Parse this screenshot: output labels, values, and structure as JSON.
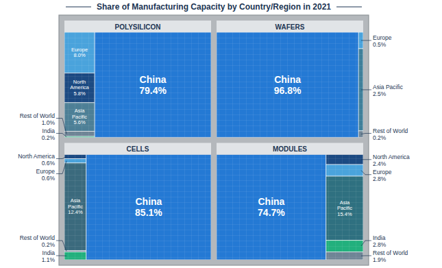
{
  "title": "Share of Manufacturing Capacity by Country/Region in 2021",
  "chart_data": [
    {
      "type": "treemap",
      "title": "POLYSILICON",
      "categories": [
        "Europe",
        "North America",
        "Asia Pacific",
        "Rest of World",
        "India",
        "China"
      ],
      "values": [
        8.0,
        5.8,
        5.6,
        1.0,
        0.2,
        79.4
      ],
      "value_labels": [
        "8.0%",
        "5.8%",
        "5.6%",
        "1.0%",
        "0.2%",
        "79.4%"
      ],
      "colors": [
        "#4aa3dc",
        "#1c4a82",
        "#4d7f96",
        "#6f8596",
        "#22b07d",
        "#2479d4"
      ],
      "data_labels": true
    },
    {
      "type": "treemap",
      "title": "WAFERS",
      "categories": [
        "China",
        "Europe",
        "Asia Pacific",
        "Rest of World"
      ],
      "values": [
        96.8,
        0.5,
        2.5,
        0.2
      ],
      "value_labels": [
        "96.8%",
        "0.5%",
        "2.5%",
        "0.2%"
      ],
      "colors": [
        "#2479d4",
        "#4aa3dc",
        "#3f7f9a",
        "#6f8596"
      ],
      "data_labels": true
    },
    {
      "type": "treemap",
      "title": "CELLS",
      "categories": [
        "North America",
        "Europe",
        "Asia Pacific",
        "Rest of World",
        "India",
        "China"
      ],
      "values": [
        0.6,
        0.6,
        12.4,
        0.2,
        1.1,
        85.1
      ],
      "value_labels": [
        "0.6%",
        "0.6%",
        "12.4%",
        "0.2%",
        "1.1%",
        "85.1%"
      ],
      "colors": [
        "#1c4a82",
        "#4aa3dc",
        "#3b6a7d",
        "#6f8596",
        "#22b07d",
        "#2479d4"
      ],
      "data_labels": true
    },
    {
      "type": "treemap",
      "title": "MODULES",
      "categories": [
        "China",
        "North America",
        "Europe",
        "Asia Pacific",
        "India",
        "Rest of World"
      ],
      "values": [
        74.7,
        2.4,
        2.8,
        15.4,
        2.8,
        1.9
      ],
      "value_labels": [
        "74.7%",
        "2.4%",
        "2.8%",
        "15.4%",
        "2.8%",
        "1.9%"
      ],
      "colors": [
        "#2479d4",
        "#1c4a82",
        "#4aa3dc",
        "#2f7080",
        "#22b07d",
        "#6f8596"
      ],
      "data_labels": true
    }
  ]
}
